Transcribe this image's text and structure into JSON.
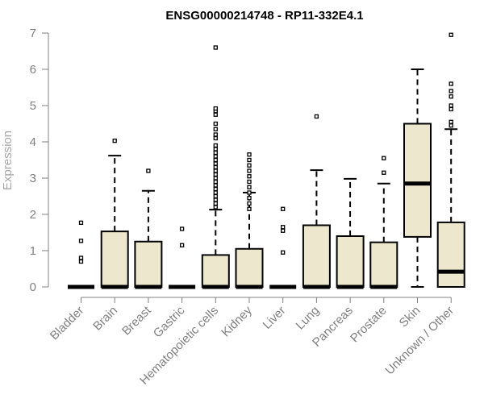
{
  "chart_data": {
    "type": "box",
    "title": "ENSG00000214748 - RP11-332E4.1",
    "xlabel": "",
    "ylabel": "Expression",
    "ylim": [
      0,
      7
    ],
    "yticks": [
      0,
      1,
      2,
      3,
      4,
      5,
      6,
      7
    ],
    "grid": false,
    "legend": "none",
    "box_fill": "#ede7cd",
    "box_stroke": "#000000",
    "categories": [
      "Bladder",
      "Brain",
      "Breast",
      "Gastric",
      "Hematopoietic cells",
      "Kidney",
      "Liver",
      "Lung",
      "Pancreas",
      "Prostate",
      "Skin",
      "Unknown / Other"
    ],
    "boxes": [
      {
        "category": "Bladder",
        "q1": 0,
        "median": 0,
        "q3": 0,
        "whisker_low": 0,
        "whisker_high": 0,
        "outliers": [
          0.7,
          0.8,
          1.27,
          1.77
        ]
      },
      {
        "category": "Brain",
        "q1": 0,
        "median": 0,
        "q3": 1.53,
        "whisker_low": 0,
        "whisker_high": 3.62,
        "outliers": [
          4.03
        ]
      },
      {
        "category": "Breast",
        "q1": 0,
        "median": 0,
        "q3": 1.25,
        "whisker_low": 0,
        "whisker_high": 2.65,
        "outliers": [
          3.2
        ]
      },
      {
        "category": "Gastric",
        "q1": 0,
        "median": 0,
        "q3": 0,
        "whisker_low": 0,
        "whisker_high": 0,
        "outliers": [
          1.15,
          1.6
        ]
      },
      {
        "category": "Hematopoietic cells",
        "q1": 0,
        "median": 0,
        "q3": 0.88,
        "whisker_low": 0,
        "whisker_high": 2.13,
        "outliers": [
          2.2,
          2.3,
          2.4,
          2.5,
          2.6,
          2.7,
          2.8,
          2.9,
          3.0,
          3.1,
          3.2,
          3.3,
          3.4,
          3.5,
          3.6,
          3.7,
          3.8,
          3.9,
          4.1,
          4.2,
          4.35,
          4.5,
          4.75,
          4.85,
          4.92,
          6.6
        ]
      },
      {
        "category": "Kidney",
        "q1": 0,
        "median": 0,
        "q3": 1.05,
        "whisker_low": 0,
        "whisker_high": 2.6,
        "outliers": [
          2.15,
          2.3,
          2.45,
          2.6,
          2.75,
          2.9,
          3.05,
          3.2,
          3.35,
          3.5,
          3.65
        ]
      },
      {
        "category": "Liver",
        "q1": 0,
        "median": 0,
        "q3": 0,
        "whisker_low": 0,
        "whisker_high": 0,
        "outliers": [
          0.95,
          1.55,
          1.65,
          2.15
        ]
      },
      {
        "category": "Lung",
        "q1": 0,
        "median": 0,
        "q3": 1.7,
        "whisker_low": 0,
        "whisker_high": 3.22,
        "outliers": [
          4.7
        ]
      },
      {
        "category": "Pancreas",
        "q1": 0,
        "median": 0,
        "q3": 1.4,
        "whisker_low": 0,
        "whisker_high": 2.98,
        "outliers": []
      },
      {
        "category": "Prostate",
        "q1": 0,
        "median": 0,
        "q3": 1.23,
        "whisker_low": 0,
        "whisker_high": 2.85,
        "outliers": [
          3.15,
          3.55
        ]
      },
      {
        "category": "Skin",
        "q1": 1.38,
        "median": 2.85,
        "q3": 4.5,
        "whisker_low": 0,
        "whisker_high": 6.0,
        "outliers": []
      },
      {
        "category": "Unknown / Other",
        "q1": 0,
        "median": 0.42,
        "q3": 1.78,
        "whisker_low": 0,
        "whisker_high": 4.35,
        "outliers": [
          4.45,
          4.55,
          4.9,
          5.0,
          5.25,
          5.4,
          5.6,
          6.95
        ]
      }
    ]
  }
}
